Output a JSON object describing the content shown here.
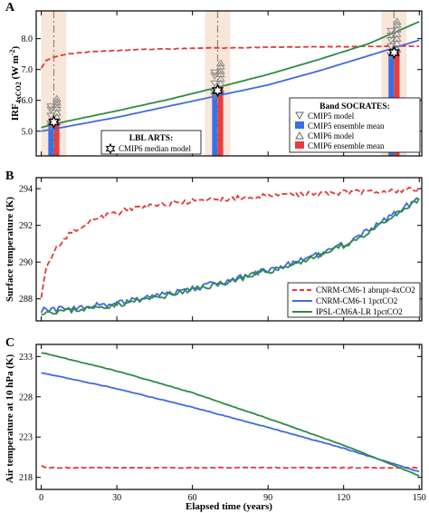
{
  "figure": {
    "xlabel": "Elapsed time (years)",
    "xticks": [
      0,
      30,
      60,
      90,
      120,
      150
    ],
    "xlim": [
      -2,
      151
    ]
  },
  "panelA": {
    "letter": "A",
    "ylabel_main": "IRF",
    "ylabel_sub": "4xCO2",
    "ylabel_unit": " (W m",
    "ylabel_exp": "-2",
    "ylabel_close": ")",
    "ylim": [
      4.2,
      8.9
    ],
    "yticks": [
      "5.0",
      "6.0",
      "7.0",
      "8.0"
    ],
    "yticks_values": [
      5,
      6,
      7,
      8
    ],
    "legend_right_title": "Band SOCRATES:",
    "legend_right_items": [
      "CMIP5 model",
      "CMIP5 ensemble mean",
      "CMIP6 model",
      "CMIP6 ensemble mean"
    ],
    "legend_left_title": "LBL ARTS:",
    "legend_left_item": "CMIP6 median model"
  },
  "panelB": {
    "letter": "B",
    "ylabel": "Surface temperature (K)",
    "ylim": [
      286.8,
      294.6
    ],
    "yticks": [
      "288",
      "290",
      "292",
      "294"
    ],
    "yticks_values": [
      288,
      290,
      292,
      294
    ],
    "legend": [
      "CNRM-CM6-1 abrupt-4xCO2",
      "CNRM-CM6-1 1pctCO2",
      "IPSL-CM6A-LR 1pctCO2"
    ]
  },
  "panelC": {
    "letter": "C",
    "ylabel": "Air temperature at 10 hPa (K)",
    "ylim": [
      216.5,
      234.5
    ],
    "yticks": [
      "218",
      "223",
      "228",
      "233"
    ],
    "yticks_values": [
      218,
      223,
      228,
      233
    ]
  },
  "colors": {
    "red": "#e03a3a",
    "blue": "#4169e1",
    "green": "#2e8b45",
    "bar_blue": "#3b6fe6",
    "bar_red": "#ee3b3b",
    "shade": "#f8e6d8",
    "gray": "#888888"
  },
  "chart_data": [
    {
      "panel": "A",
      "type": "line",
      "series": [
        {
          "name": "CNRM-CM6-1 abrupt-4xCO2",
          "x": [
            0,
            2,
            5,
            10,
            20,
            40,
            70,
            100,
            130,
            150
          ],
          "y": [
            7.05,
            7.3,
            7.4,
            7.5,
            7.58,
            7.65,
            7.7,
            7.73,
            7.75,
            7.76
          ]
        },
        {
          "name": "CNRM-CM6-1 1pctCO2",
          "x": [
            0,
            10,
            30,
            50,
            70,
            90,
            110,
            130,
            150
          ],
          "y": [
            5.0,
            5.15,
            5.45,
            5.8,
            6.15,
            6.5,
            6.95,
            7.45,
            7.95
          ]
        },
        {
          "name": "IPSL-CM6A-LR 1pctCO2",
          "x": [
            0,
            10,
            30,
            50,
            70,
            90,
            110,
            130,
            150
          ],
          "y": [
            5.12,
            5.32,
            5.66,
            6.02,
            6.42,
            6.84,
            7.32,
            7.84,
            8.55
          ]
        }
      ],
      "bars": [
        {
          "center": 5,
          "cmip5_mean": 5.3,
          "cmip6_mean": 5.4
        },
        {
          "center": 70,
          "cmip5_mean": 6.3,
          "cmip6_mean": 6.4
        },
        {
          "center": 140,
          "cmip5_mean": 7.5,
          "cmip6_mean": 7.65
        }
      ],
      "cmip5_models": {
        "5": [
          5.5,
          5.7,
          5.8,
          5.15,
          5.25
        ],
        "70": [
          6.55,
          6.8,
          6.9,
          6.15,
          6.25
        ],
        "140": [
          7.75,
          7.95,
          8.1,
          7.45,
          8.25
        ]
      },
      "cmip6_models": {
        "5": [
          5.3,
          5.45,
          5.6,
          5.75,
          5.85,
          5.95,
          6.05
        ],
        "70": [
          6.35,
          6.55,
          6.7,
          6.85,
          6.95,
          7.1,
          7.2
        ],
        "140": [
          7.65,
          7.85,
          8.0,
          8.15,
          8.3,
          8.45,
          8.55
        ]
      },
      "lbl_median": [
        {
          "x": 5,
          "y": 5.3
        },
        {
          "x": 70,
          "y": 6.32
        },
        {
          "x": 140,
          "y": 7.55
        }
      ],
      "shade_ranges": [
        [
          0,
          10
        ],
        [
          65,
          75
        ],
        [
          135,
          145
        ]
      ]
    },
    {
      "panel": "B",
      "type": "line",
      "series": [
        {
          "name": "CNRM-CM6-1 abrupt-4xCO2",
          "x": [
            0,
            2,
            4,
            7,
            10,
            15,
            20,
            30,
            40,
            50,
            60,
            70,
            80,
            90,
            100,
            110,
            120,
            130,
            140,
            150
          ],
          "y": [
            288.2,
            289.6,
            290.3,
            290.9,
            291.4,
            291.9,
            292.3,
            292.7,
            293.0,
            293.2,
            293.3,
            293.4,
            293.5,
            293.6,
            293.7,
            293.75,
            293.8,
            293.85,
            293.9,
            293.95
          ]
        },
        {
          "name": "CNRM-CM6-1 1pctCO2",
          "x": [
            0,
            10,
            20,
            30,
            40,
            50,
            60,
            70,
            80,
            90,
            100,
            110,
            120,
            130,
            140,
            150
          ],
          "y": [
            287.4,
            287.45,
            287.6,
            287.8,
            288.0,
            288.25,
            288.55,
            288.85,
            289.2,
            289.55,
            289.95,
            290.4,
            291.0,
            291.7,
            292.6,
            293.5
          ]
        },
        {
          "name": "IPSL-CM6A-LR 1pctCO2",
          "x": [
            0,
            10,
            20,
            30,
            40,
            50,
            60,
            70,
            80,
            90,
            100,
            110,
            120,
            130,
            140,
            150
          ],
          "y": [
            287.3,
            287.35,
            287.5,
            287.7,
            287.95,
            288.2,
            288.5,
            288.8,
            289.15,
            289.5,
            289.9,
            290.35,
            290.9,
            291.6,
            292.5,
            293.4
          ]
        }
      ]
    },
    {
      "panel": "C",
      "type": "line",
      "series": [
        {
          "name": "CNRM-CM6-1 abrupt-4xCO2",
          "x": [
            0,
            2,
            150
          ],
          "y": [
            219.5,
            219.2,
            219.2
          ]
        },
        {
          "name": "CNRM-CM6-1 1pctCO2",
          "x": [
            0,
            30,
            60,
            90,
            120,
            150
          ],
          "y": [
            231.0,
            229.0,
            226.7,
            224.2,
            221.6,
            218.7
          ]
        },
        {
          "name": "IPSL-CM6A-LR 1pctCO2",
          "x": [
            0,
            30,
            60,
            90,
            120,
            150
          ],
          "y": [
            233.5,
            231.2,
            228.5,
            225.3,
            222.0,
            218.2
          ]
        }
      ]
    }
  ]
}
